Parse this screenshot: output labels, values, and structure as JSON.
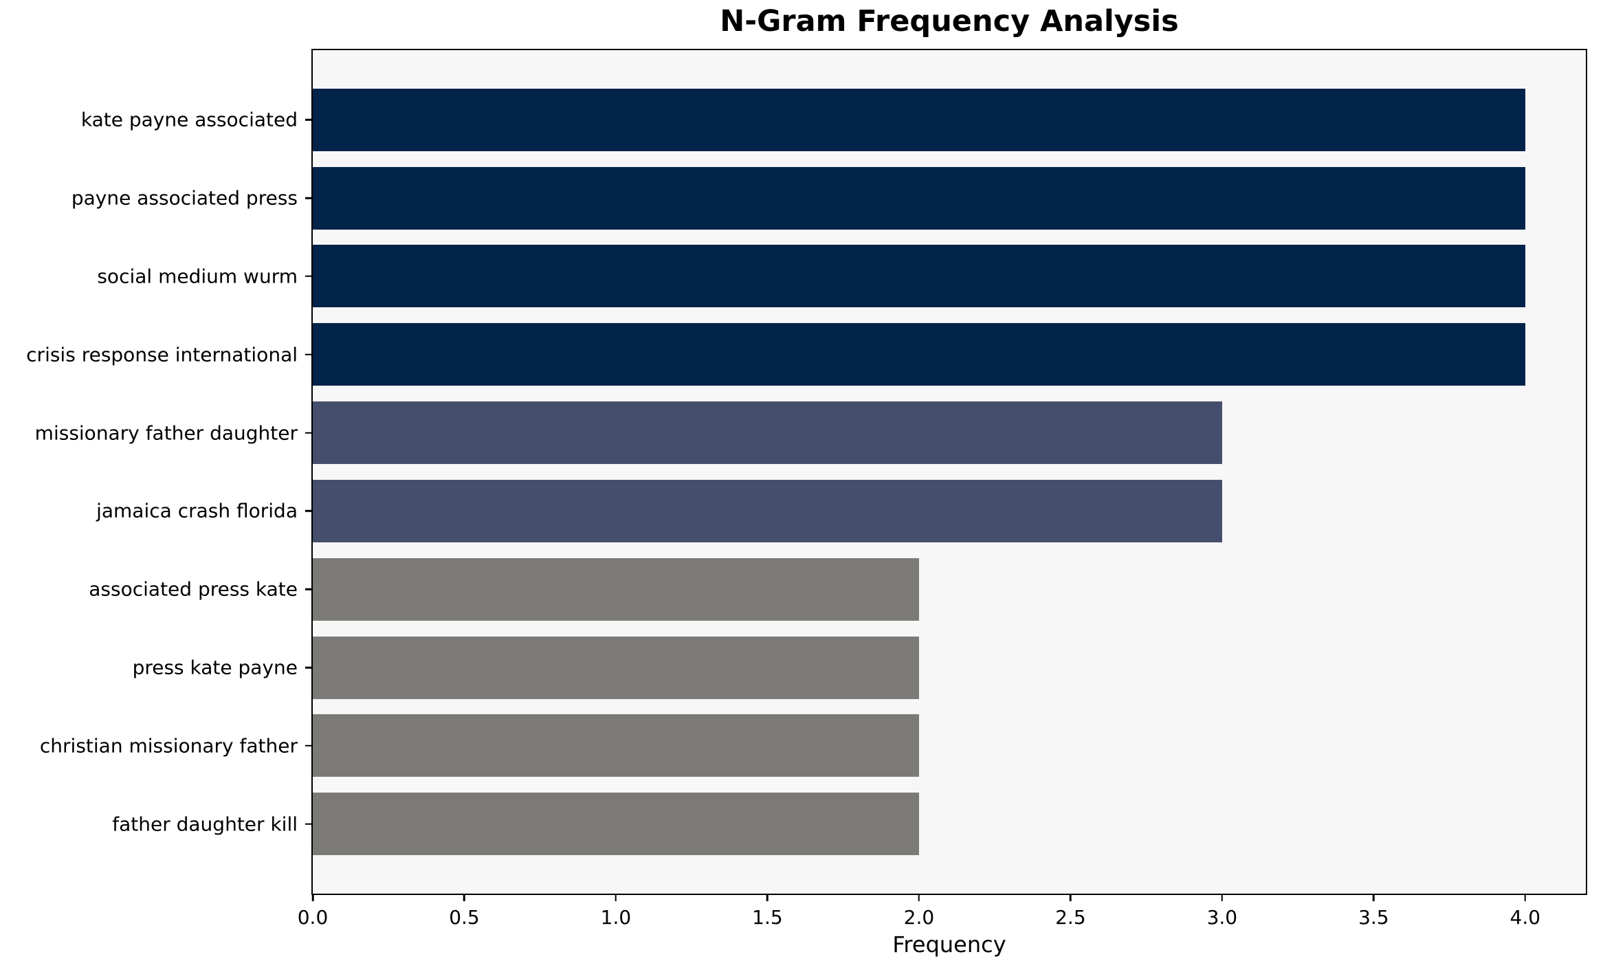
{
  "title": "N-Gram Frequency Analysis",
  "xlabel": "Frequency",
  "chart_data": {
    "type": "bar",
    "orientation": "horizontal",
    "title": "N-Gram Frequency Analysis",
    "xlabel": "Frequency",
    "ylabel": "",
    "categories": [
      "kate payne associated",
      "payne associated press",
      "social medium wurm",
      "crisis response international",
      "missionary father daughter",
      "jamaica crash florida",
      "associated press kate",
      "press kate payne",
      "christian missionary father",
      "father daughter kill"
    ],
    "values": [
      4,
      4,
      4,
      4,
      3,
      3,
      2,
      2,
      2,
      2
    ],
    "bar_colors": [
      "#02234a",
      "#02234a",
      "#02234a",
      "#02234a",
      "#454f6d",
      "#454f6d",
      "#7b7a77",
      "#7b7a77",
      "#7b7a77",
      "#7b7a77"
    ],
    "color_legend": {
      "frequency_4": "#02234a",
      "frequency_3": "#454f6d",
      "frequency_2": "#7b7a77"
    },
    "xlim": [
      0,
      4.2
    ],
    "xticks": [
      0.0,
      0.5,
      1.0,
      1.5,
      2.0,
      2.5,
      3.0,
      3.5,
      4.0
    ],
    "xtick_labels": [
      "0.0",
      "0.5",
      "1.0",
      "1.5",
      "2.0",
      "2.5",
      "3.0",
      "3.5",
      "4.0"
    ],
    "grid": false,
    "legend": "none",
    "plot_background": "#f7f7f7",
    "figure_background": "#ffffff",
    "spine_color": "#000000"
  }
}
